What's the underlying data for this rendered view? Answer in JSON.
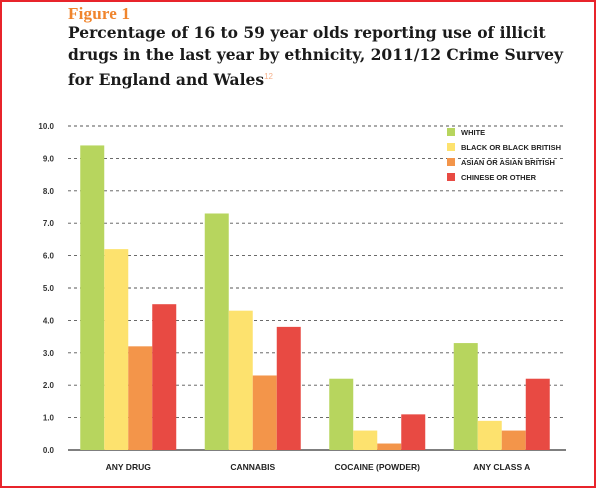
{
  "figure_label": "Figure 1",
  "title": "Percentage of 16 to 59 year olds reporting use of illicit drugs in the last year by ethnicity, 2011/12 Crime Survey for England and Wales",
  "title_footnote": "12",
  "chart_data": {
    "type": "bar",
    "categories": [
      "ANY DRUG",
      "CANNABIS",
      "COCAINE (POWDER)",
      "ANY CLASS A"
    ],
    "series": [
      {
        "name": "WHITE",
        "color": "#b7d55e",
        "values": [
          9.4,
          7.3,
          2.2,
          3.3
        ]
      },
      {
        "name": "BLACK OR BLACK BRITISH",
        "color": "#fde26e",
        "values": [
          6.2,
          4.3,
          0.6,
          0.9
        ]
      },
      {
        "name": "ASIAN OR ASIAN BRITISH",
        "color": "#f3954a",
        "values": [
          3.2,
          2.3,
          0.2,
          0.6
        ]
      },
      {
        "name": "CHINESE OR OTHER",
        "color": "#e84a43",
        "values": [
          4.5,
          3.8,
          1.1,
          2.2
        ]
      }
    ],
    "yticks": [
      "0.0",
      "1.0",
      "2.0",
      "3.0",
      "4.0",
      "5.0",
      "6.0",
      "7.0",
      "8.0",
      "9.0",
      "10.0"
    ],
    "ylim": [
      0,
      10
    ],
    "grid": "dashed horizontal",
    "legend_position": "top-right",
    "xlabel": "",
    "ylabel": ""
  }
}
